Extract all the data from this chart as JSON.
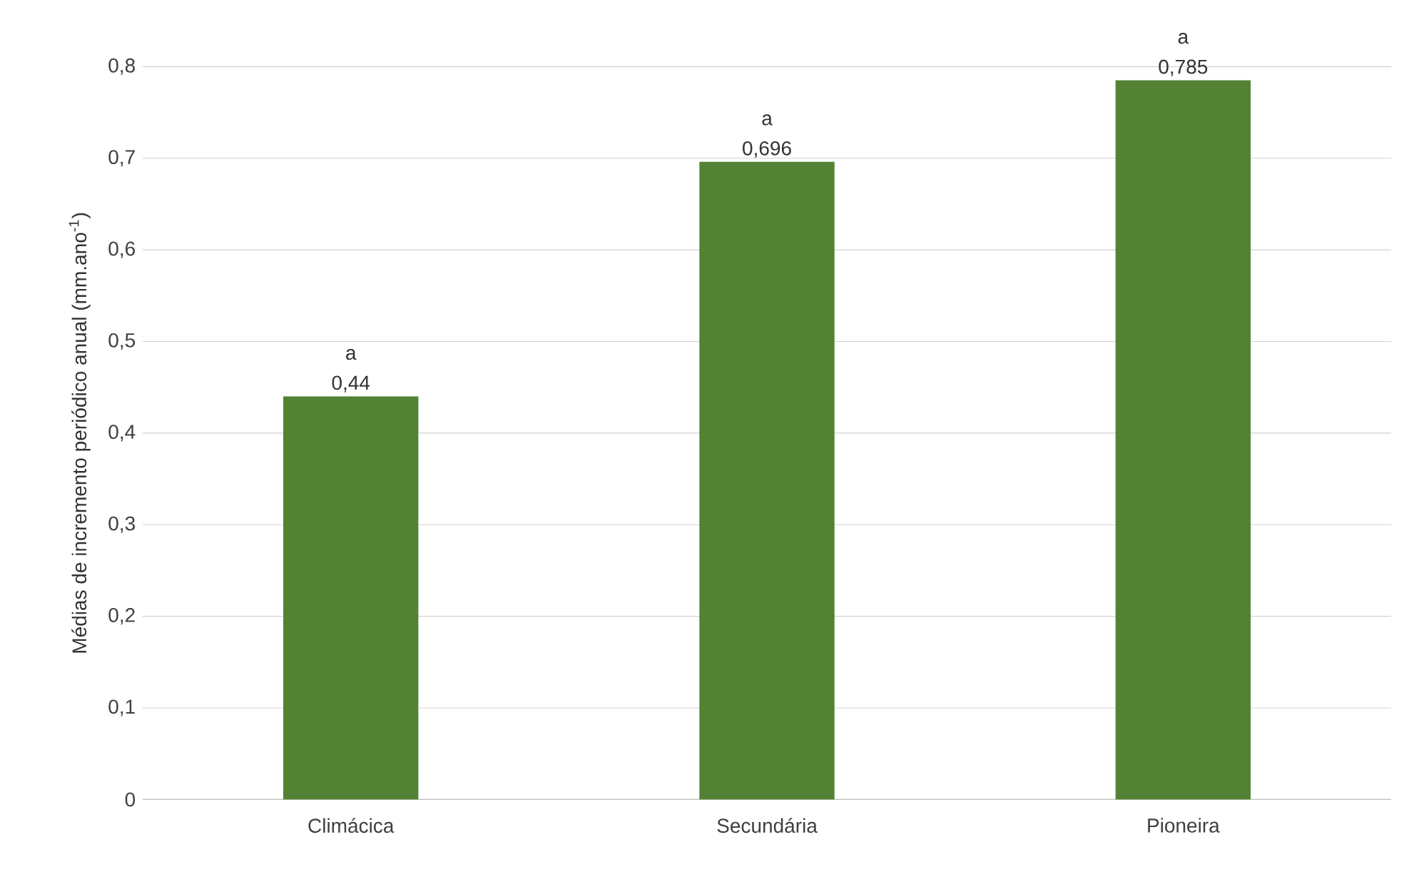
{
  "chart_data": {
    "type": "bar",
    "ylabel": "Médias de incremento periódico anual (mm.ano$^{-1}$)",
    "categories": [
      "Climácica",
      "Secundária",
      "Pioneira"
    ],
    "values": [
      0.44,
      0.696,
      0.785
    ],
    "value_labels": [
      "0,44",
      "0,696",
      "0,785"
    ],
    "color": "#548235",
    "ylim": [
      0,
      0.8
    ],
    "yticks": [
      0,
      {
        "value": 0.1,
        "label": "0,1"
      },
      {
        "value": 0.2,
        "label": "0,2"
      },
      {
        "value": 0.3,
        "label": "0,3"
      },
      {
        "value": 0.4,
        "label": "0,4"
      },
      {
        "value": 0.5,
        "label": "0,5"
      },
      {
        "value": 0.6,
        "label": "0,6"
      },
      {
        "value": 0.7,
        "label": "0,7"
      },
      {
        "value": 0.8,
        "label": "0,8"
      }
    ],
    "grid": "y",
    "annotations": [
      {
        "text": "a",
        "x": "Climácica",
        "y": 0.44
      },
      {
        "text": "a",
        "x": "Secundária",
        "y": 0.696
      },
      {
        "text": "a",
        "x": "Pioneira",
        "y": 0.785
      }
    ]
  }
}
